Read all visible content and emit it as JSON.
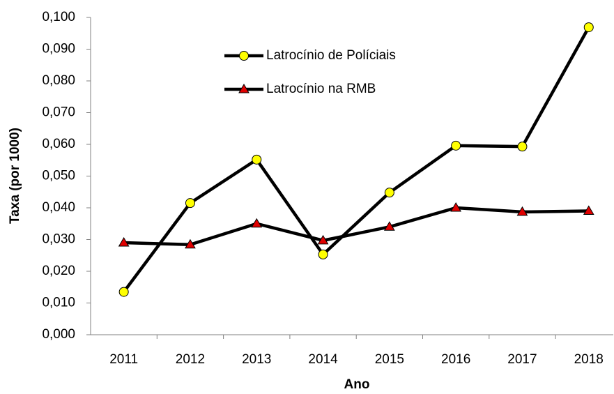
{
  "chart_data": {
    "type": "line",
    "x_label": "Ano",
    "y_label": "Taxa (por 1000)",
    "categories": [
      "2011",
      "2012",
      "2013",
      "2014",
      "2015",
      "2016",
      "2017",
      "2018"
    ],
    "line_color": "#000000",
    "series": [
      {
        "name": "Latrocínio de Políciais",
        "color": "#ffff00",
        "marker": "circle",
        "values": [
          0.0135,
          0.0415,
          0.0552,
          0.0253,
          0.0448,
          0.0596,
          0.0593,
          0.0969
        ]
      },
      {
        "name": "Latrocínio na RMB",
        "color": "#e00000",
        "marker": "triangle",
        "values": [
          0.029,
          0.0284,
          0.035,
          0.0297,
          0.034,
          0.04,
          0.0387,
          0.039
        ]
      }
    ],
    "ylim": [
      0,
      0.1
    ],
    "yticks": [
      {
        "value": 0,
        "label": "0,000"
      },
      {
        "value": 0.01,
        "label": "0,010"
      },
      {
        "value": 0.02,
        "label": "0,020"
      },
      {
        "value": 0.03,
        "label": "0,030"
      },
      {
        "value": 0.04,
        "label": "0,040"
      },
      {
        "value": 0.05,
        "label": "0,050"
      },
      {
        "value": 0.06,
        "label": "0,060"
      },
      {
        "value": 0.07,
        "label": "0,070"
      },
      {
        "value": 0.08,
        "label": "0,080"
      },
      {
        "value": 0.09,
        "label": "0,090"
      },
      {
        "value": 0.1,
        "label": "0,100"
      }
    ],
    "grid": false,
    "legend": "top"
  }
}
